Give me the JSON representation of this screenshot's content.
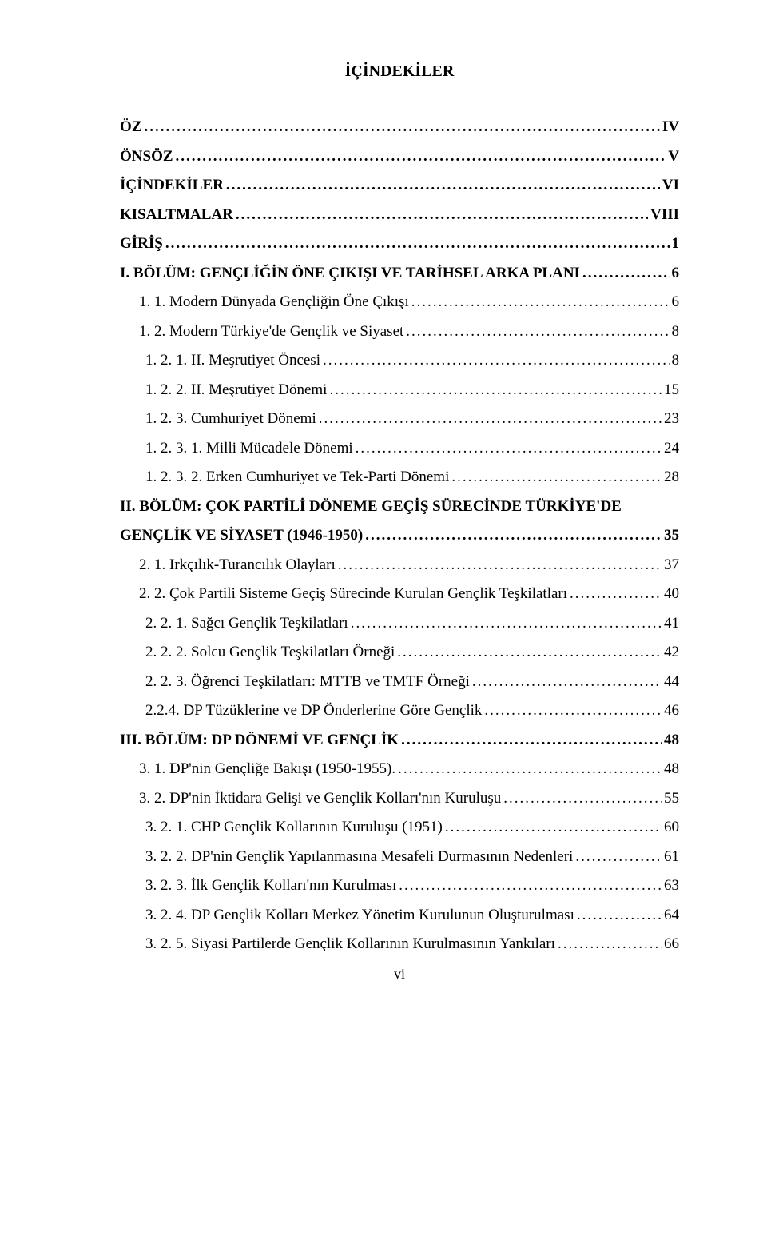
{
  "title": "İÇİNDEKİLER",
  "entries": [
    {
      "label": "ÖZ",
      "page": "IV",
      "bold": true,
      "indent": 0
    },
    {
      "label": "ÖNSÖZ",
      "page": "V",
      "bold": true,
      "indent": 0
    },
    {
      "label": "İÇİNDEKİLER",
      "page": "VI",
      "bold": true,
      "indent": 0
    },
    {
      "label": "KISALTMALAR",
      "page": "VIII",
      "bold": true,
      "indent": 0
    },
    {
      "label": "GİRİŞ",
      "page": "1",
      "bold": true,
      "indent": 0
    },
    {
      "label": "I. BÖLÜM: GENÇLİĞİN ÖNE ÇIKIŞI VE TARİHSEL ARKA PLANI",
      "page": "6",
      "bold": true,
      "indent": 0
    },
    {
      "label": "1. 1. Modern Dünyada Gençliğin Öne Çıkışı",
      "page": "6",
      "bold": false,
      "indent": 1
    },
    {
      "label": "1. 2. Modern Türkiye'de Gençlik ve Siyaset",
      "page": "8",
      "bold": false,
      "indent": 1
    },
    {
      "label": "1. 2. 1. II. Meşrutiyet Öncesi",
      "page": "8",
      "bold": false,
      "indent": 2
    },
    {
      "label": "1. 2. 2. II. Meşrutiyet Dönemi",
      "page": "15",
      "bold": false,
      "indent": 2
    },
    {
      "label": "1. 2. 3. Cumhuriyet Dönemi",
      "page": "23",
      "bold": false,
      "indent": 2
    },
    {
      "label": "1. 2. 3. 1. Milli Mücadele Dönemi",
      "page": "24",
      "bold": false,
      "indent": 2
    },
    {
      "label": "1. 2. 3. 2. Erken Cumhuriyet ve Tek-Parti Dönemi",
      "page": "28",
      "bold": false,
      "indent": 2
    },
    {
      "label": "II. BÖLÜM: ÇOK PARTİLİ DÖNEME GEÇİŞ SÜRECİNDE TÜRKİYE'DE GENÇLİK VE SİYASET (1946-1950)",
      "page": "35",
      "bold": true,
      "indent": 0,
      "wrap": true
    },
    {
      "label": "2. 1. Irkçılık-Turancılık Olayları",
      "page": "37",
      "bold": false,
      "indent": 1
    },
    {
      "label": "2. 2. Çok Partili Sisteme Geçiş Sürecinde Kurulan Gençlik Teşkilatları",
      "page": "40",
      "bold": false,
      "indent": 1
    },
    {
      "label": "2. 2. 1. Sağcı Gençlik Teşkilatları",
      "page": "41",
      "bold": false,
      "indent": 2
    },
    {
      "label": "2. 2. 2. Solcu Gençlik Teşkilatları Örneği",
      "page": "42",
      "bold": false,
      "indent": 2
    },
    {
      "label": "2. 2. 3. Öğrenci Teşkilatları: MTTB ve TMTF Örneği",
      "page": "44",
      "bold": false,
      "indent": 2
    },
    {
      "label": "2.2.4. DP Tüzüklerine ve DP Önderlerine Göre Gençlik",
      "page": "46",
      "bold": false,
      "indent": 2
    },
    {
      "label": "III. BÖLÜM: DP DÖNEMİ VE GENÇLİK",
      "page": "48",
      "bold": true,
      "indent": 0
    },
    {
      "label": "3. 1. DP'nin Gençliğe Bakışı (1950-1955).",
      "page": "48",
      "bold": false,
      "indent": 1
    },
    {
      "label": "3. 2. DP'nin İktidara Gelişi ve Gençlik Kolları'nın Kuruluşu",
      "page": "55",
      "bold": false,
      "indent": 1
    },
    {
      "label": "3. 2. 1. CHP Gençlik Kollarının Kuruluşu (1951)",
      "page": "60",
      "bold": false,
      "indent": 2
    },
    {
      "label": "3. 2. 2. DP'nin Gençlik Yapılanmasına Mesafeli Durmasının Nedenleri",
      "page": "61",
      "bold": false,
      "indent": 2
    },
    {
      "label": "3. 2. 3. İlk Gençlik Kolları'nın Kurulması",
      "page": "63",
      "bold": false,
      "indent": 2
    },
    {
      "label": "3. 2. 4. DP Gençlik Kolları Merkez Yönetim Kurulunun Oluşturulması",
      "page": "64",
      "bold": false,
      "indent": 2
    },
    {
      "label": "3. 2. 5. Siyasi Partilerde Gençlik Kollarının Kurulmasının Yankıları",
      "page": "66",
      "bold": false,
      "indent": 2
    }
  ],
  "wrap_entry_line1": "II. BÖLÜM: ÇOK PARTİLİ DÖNEME GEÇİŞ SÜRECİNDE TÜRKİYE'DE",
  "wrap_entry_line2": "GENÇLİK VE SİYASET (1946-1950)",
  "footer": "vi"
}
